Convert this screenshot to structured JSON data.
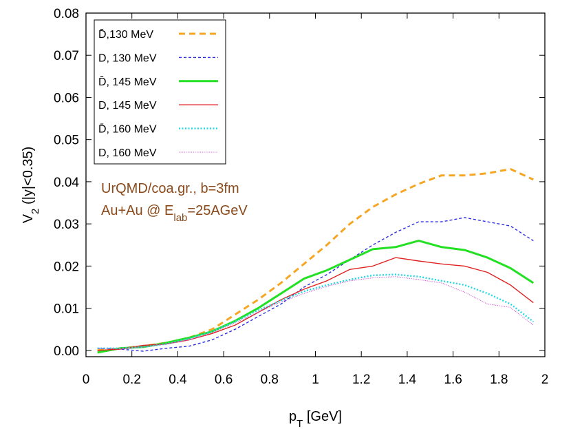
{
  "chart_data": {
    "type": "line",
    "xlabel": "p",
    "xlabel_sub": "T",
    "xlabel_unit": " [GeV]",
    "ylabel": "V",
    "ylabel_sub": "2",
    "ylabel_rest": " (|y|<0.35)",
    "xlim": [
      0,
      2
    ],
    "ylim": [
      0,
      0.08
    ],
    "yrange_plot": [
      -0.0015,
      0.08
    ],
    "x_ticks": [
      0,
      0.2,
      0.4,
      0.6,
      0.8,
      1,
      1.2,
      1.4,
      1.6,
      1.8,
      2
    ],
    "x_tick_labels": [
      "0",
      "0.2",
      "0.4",
      "0.6",
      "0.8",
      "1",
      "1.2",
      "1.4",
      "1.6",
      "1.8",
      "2"
    ],
    "y_ticks": [
      0,
      0.01,
      0.02,
      0.03,
      0.04,
      0.05,
      0.06,
      0.07,
      0.08
    ],
    "y_tick_labels": [
      "0.00",
      "0.01",
      "0.02",
      "0.03",
      "0.04",
      "0.05",
      "0.06",
      "0.07",
      "0.08"
    ],
    "grid": false,
    "legend_position": "top-left",
    "annotations": [
      {
        "text": "UrQMD/coa.gr., b=3fm"
      },
      {
        "text_pre": "Au+Au @ E",
        "text_sub": "lab",
        "text_post": "=25AGeV"
      }
    ],
    "series": [
      {
        "name": "D̄,130 MeV",
        "color": "#F5A623",
        "dash": "dashed",
        "x": [
          0.05,
          0.15,
          0.25,
          0.35,
          0.45,
          0.55,
          0.65,
          0.75,
          0.85,
          0.95,
          1.05,
          1.15,
          1.25,
          1.35,
          1.45,
          1.55,
          1.65,
          1.75,
          1.85,
          1.95
        ],
        "values": [
          0.0,
          0.0005,
          0.001,
          0.0018,
          0.003,
          0.005,
          0.0085,
          0.012,
          0.016,
          0.0205,
          0.025,
          0.03,
          0.034,
          0.037,
          0.0395,
          0.0415,
          0.0415,
          0.042,
          0.043,
          0.0405
        ]
      },
      {
        "name": "D, 130 MeV",
        "color": "#2E2EE0",
        "dash": "short-dashed",
        "x": [
          0.05,
          0.15,
          0.25,
          0.35,
          0.45,
          0.55,
          0.65,
          0.75,
          0.85,
          0.95,
          1.05,
          1.15,
          1.25,
          1.35,
          1.45,
          1.55,
          1.65,
          1.75,
          1.85,
          1.95
        ],
        "values": [
          0.0005,
          0.0003,
          -0.0002,
          0.0005,
          0.001,
          0.0025,
          0.005,
          0.008,
          0.011,
          0.015,
          0.018,
          0.0215,
          0.025,
          0.028,
          0.0305,
          0.0305,
          0.0315,
          0.0305,
          0.0295,
          0.026
        ]
      },
      {
        "name": "D̄, 145 MeV",
        "color": "#22E022",
        "dash": "solid-thick",
        "x": [
          0.05,
          0.15,
          0.25,
          0.35,
          0.45,
          0.55,
          0.65,
          0.75,
          0.85,
          0.95,
          1.05,
          1.15,
          1.25,
          1.35,
          1.45,
          1.55,
          1.65,
          1.75,
          1.85,
          1.95
        ],
        "values": [
          -0.0005,
          0.0005,
          0.0008,
          0.0018,
          0.003,
          0.0045,
          0.007,
          0.01,
          0.0135,
          0.017,
          0.019,
          0.0215,
          0.024,
          0.0245,
          0.026,
          0.0245,
          0.0238,
          0.022,
          0.0195,
          0.016
        ]
      },
      {
        "name": "D, 145 MeV",
        "color": "#E02222",
        "dash": "solid",
        "x": [
          0.05,
          0.15,
          0.25,
          0.35,
          0.45,
          0.55,
          0.65,
          0.75,
          0.85,
          0.95,
          1.05,
          1.15,
          1.25,
          1.35,
          1.45,
          1.55,
          1.65,
          1.75,
          1.85,
          1.95
        ],
        "values": [
          0.0,
          0.0003,
          0.0012,
          0.0015,
          0.0025,
          0.004,
          0.006,
          0.009,
          0.012,
          0.0145,
          0.0165,
          0.0192,
          0.02,
          0.022,
          0.0212,
          0.0205,
          0.02,
          0.0185,
          0.0155,
          0.0113
        ]
      },
      {
        "name": "D̄, 160 MeV",
        "color": "#22D8E0",
        "dash": "dotted",
        "x": [
          0.05,
          0.15,
          0.25,
          0.35,
          0.45,
          0.55,
          0.65,
          0.75,
          0.85,
          0.95,
          1.05,
          1.15,
          1.25,
          1.35,
          1.45,
          1.55,
          1.65,
          1.75,
          1.85,
          1.95
        ],
        "values": [
          0.0005,
          0.0005,
          0.0008,
          0.0015,
          0.0028,
          0.0045,
          0.0068,
          0.0095,
          0.0118,
          0.014,
          0.0155,
          0.0168,
          0.0178,
          0.018,
          0.0175,
          0.0165,
          0.0155,
          0.0135,
          0.011,
          0.0068
        ]
      },
      {
        "name": "D, 160 MeV",
        "color": "#D040D0",
        "dash": "fine-dotted",
        "x": [
          0.05,
          0.15,
          0.25,
          0.35,
          0.45,
          0.55,
          0.65,
          0.75,
          0.85,
          0.95,
          1.05,
          1.15,
          1.25,
          1.35,
          1.45,
          1.55,
          1.65,
          1.75,
          1.85,
          1.95
        ],
        "values": [
          0.0005,
          0.0003,
          0.0008,
          0.0015,
          0.0025,
          0.0042,
          0.0065,
          0.009,
          0.0115,
          0.0135,
          0.0152,
          0.0165,
          0.0172,
          0.0175,
          0.0168,
          0.016,
          0.0138,
          0.011,
          0.0102,
          0.006
        ]
      }
    ]
  }
}
